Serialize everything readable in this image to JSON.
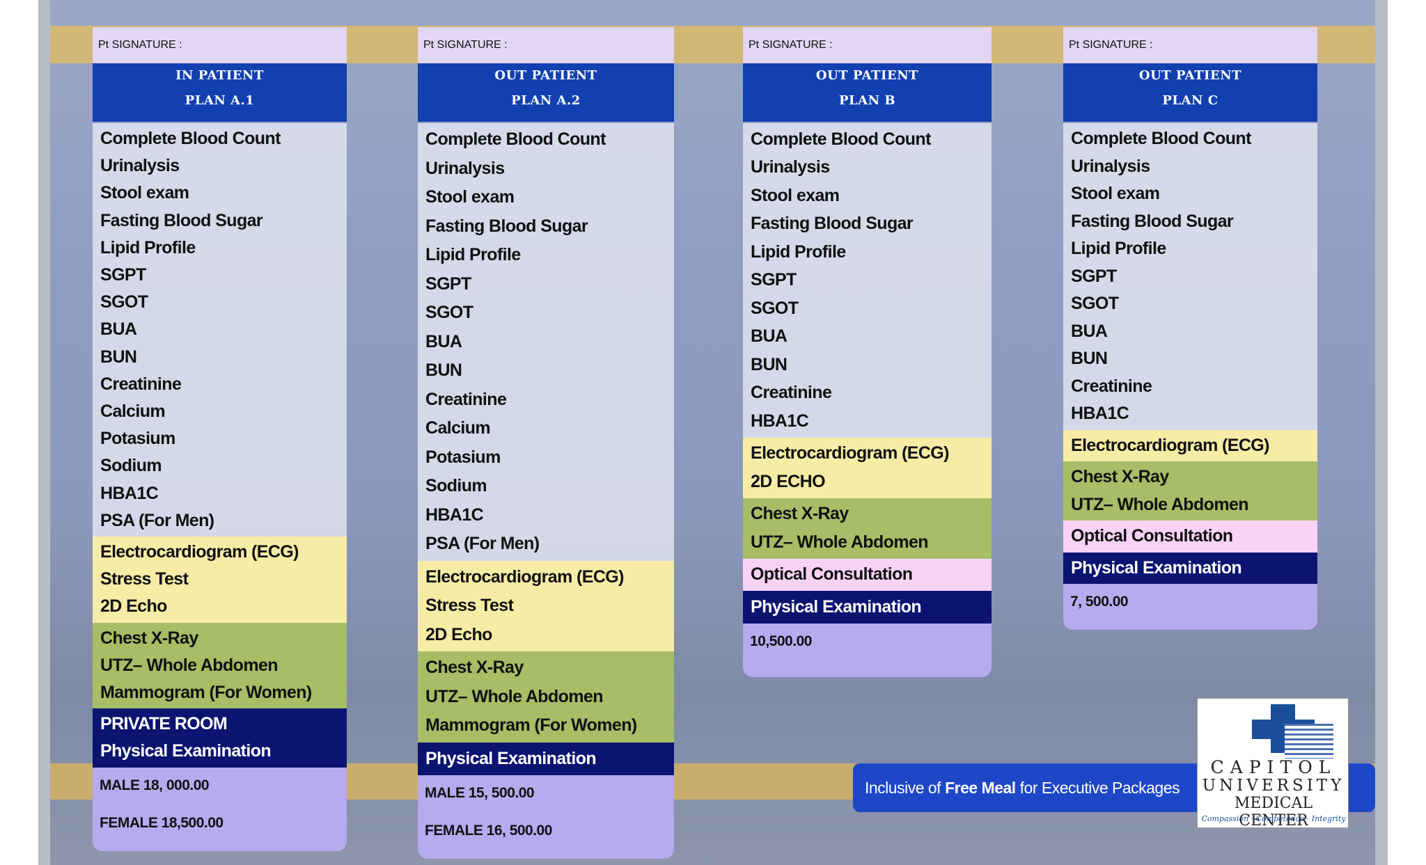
{
  "columns": [
    {
      "signature": "Pt SIGNATURE :",
      "title": [
        "IN PATIENT",
        "PLAN A.1"
      ],
      "sections": [
        {
          "color": "#e4e7f2",
          "items": [
            "Complete Blood Count",
            "Urinalysis",
            "Stool exam",
            "Fasting Blood Sugar",
            "Lipid Profile",
            "SGPT",
            "SGOT",
            "BUA",
            "BUN",
            "Creatinine",
            "Calcium",
            "Potasium",
            "Sodium",
            "HBA1C",
            "PSA (For Men)"
          ]
        },
        {
          "color": "#f6eca6",
          "items": [
            "Electrocardiogram (ECG)",
            "Stress Test",
            "2D Echo"
          ]
        },
        {
          "color": "#a7bd66",
          "items": [
            "Chest X-Ray",
            "UTZ– Whole Abdomen",
            "Mammogram (For Women)"
          ]
        },
        {
          "color": "#0b1470",
          "items": [
            "PRIVATE ROOM",
            "Physical Examination"
          ]
        }
      ],
      "prices": [
        "MALE 18, 000.00",
        "FEMALE 18,500.00"
      ]
    },
    {
      "signature": "Pt SIGNATURE :",
      "title": [
        "OUT PATIENT",
        "PLAN A.2"
      ],
      "sections": [
        {
          "color": "#e4e7f2",
          "items": [
            "Complete Blood Count",
            "Urinalysis",
            "Stool exam",
            "Fasting Blood Sugar",
            "Lipid Profile",
            "SGPT",
            "SGOT",
            "BUA",
            "BUN",
            "Creatinine",
            "Calcium",
            "Potasium",
            "Sodium",
            "HBA1C",
            "PSA (For Men)"
          ]
        },
        {
          "color": "#f6eca6",
          "items": [
            "Electrocardiogram (ECG)",
            "Stress Test",
            "2D Echo"
          ]
        },
        {
          "color": "#a7bd66",
          "items": [
            "Chest X-Ray",
            "UTZ– Whole Abdomen",
            "Mammogram (For Women)"
          ]
        },
        {
          "color": "#0b1470",
          "items": [
            "Physical Examination"
          ]
        }
      ],
      "prices": [
        "MALE 15, 500.00",
        "FEMALE 16, 500.00"
      ]
    },
    {
      "signature": "Pt SIGNATURE :",
      "title": [
        "OUT PATIENT",
        "PLAN B"
      ],
      "sections": [
        {
          "color": "#e4e7f2",
          "items": [
            "Complete Blood Count",
            "Urinalysis",
            "Stool exam",
            "Fasting Blood Sugar",
            "Lipid Profile",
            "SGPT",
            "SGOT",
            "BUA",
            "BUN",
            "Creatinine",
            "HBA1C"
          ]
        },
        {
          "color": "#f6eca6",
          "items": [
            "Electrocardiogram (ECG)",
            "2D ECHO"
          ]
        },
        {
          "color": "#a7bd66",
          "items": [
            "Chest X-Ray",
            "UTZ– Whole Abdomen"
          ]
        },
        {
          "color": "#f8d3f6",
          "items": [
            "Optical Consultation"
          ]
        },
        {
          "color": "#0b1470",
          "items": [
            "Physical Examination"
          ]
        }
      ],
      "prices": [
        "10,500.00"
      ]
    },
    {
      "signature": "Pt SIGNATURE :",
      "title": [
        "OUT PATIENT",
        "PLAN C"
      ],
      "sections": [
        {
          "color": "#e4e7f2",
          "items": [
            "Complete Blood Count",
            "Urinalysis",
            "Stool exam",
            "Fasting Blood Sugar",
            "Lipid Profile",
            "SGPT",
            "SGOT",
            "BUA",
            "BUN",
            "Creatinine",
            "HBA1C"
          ]
        },
        {
          "color": "#f6eca6",
          "items": [
            "Electrocardiogram (ECG)"
          ]
        },
        {
          "color": "#a7bd66",
          "items": [
            "Chest X-Ray",
            "UTZ– Whole Abdomen"
          ]
        },
        {
          "color": "#f8d3f6",
          "items": [
            "Optical Consultation"
          ]
        },
        {
          "color": "#0b1470",
          "items": [
            "Physical Examination"
          ]
        }
      ],
      "prices": [
        "7, 500.00"
      ]
    }
  ],
  "footer": {
    "note": [
      "Inclusive of ",
      "Free Meal",
      " for Executive Packages"
    ]
  },
  "logo": {
    "lines": [
      "CAPITOL",
      "UNIVERSITY",
      "MEDICAL CENTER"
    ],
    "tagline": "Compassion · Competence · Integrity"
  }
}
